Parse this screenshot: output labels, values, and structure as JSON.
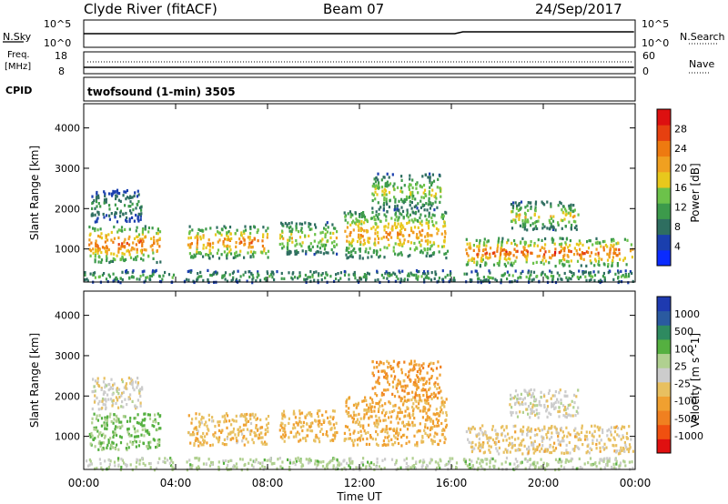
{
  "header": {
    "title": "Clyde River (fitACF)",
    "beam": "Beam 07",
    "date": "24/Sep/2017"
  },
  "top_panel": {
    "nsky_label": "N.Sky",
    "nsearch_label": "N.Search",
    "freq_label_1": "Freq.",
    "freq_label_2": "[MHz]",
    "nave_label": "Nave",
    "cpid_label": "CPID",
    "mode_text": "twofsound (1-min) 3505",
    "nsky_ticks": [
      "10^5",
      "10^0"
    ],
    "nsearch_ticks": [
      "10^5",
      "10^0"
    ],
    "freq_ticks": [
      "18",
      "8"
    ],
    "nave_ticks": [
      "60",
      "0"
    ]
  },
  "colors": {
    "power": [
      "#0a2bff",
      "#1a3fae",
      "#2e6e60",
      "#3c9a4b",
      "#6cc24a",
      "#e8c81c",
      "#f0a020",
      "#ee7a10",
      "#e64010",
      "#dd1010"
    ],
    "velocity": [
      "#e01010",
      "#f05010",
      "#f08020",
      "#f0a030",
      "#e8c060",
      "#cccccc",
      "#b0d090",
      "#55b040",
      "#2e8a60",
      "#2a5aa0",
      "#1e3ab0"
    ],
    "frame": "#000000"
  },
  "chart_data": [
    {
      "type": "heatmap",
      "title": "",
      "xlabel": "Time UT",
      "ylabel": "Slant Range [km]",
      "xlim": [
        "00:00",
        "24:00"
      ],
      "ylim": [
        180,
        4600
      ],
      "x_tick_labels": [
        "00:00",
        "04:00",
        "08:00",
        "12:00",
        "16:00",
        "20:00",
        "00:00"
      ],
      "y_tick_labels": [
        "1000",
        "2000",
        "3000",
        "4000"
      ],
      "colorbar": {
        "label": "Power [dB]",
        "tick_labels": [
          "4",
          "8",
          "12",
          "16",
          "20",
          "24",
          "28"
        ],
        "range": [
          0,
          30
        ]
      },
      "data_gaps_hours": [
        [
          3.9,
          4.3
        ],
        [
          16.2,
          16.5
        ]
      ],
      "scatter_regions": [
        {
          "t_start": 0.2,
          "t_end": 3.3,
          "range_start": 700,
          "range_end": 1600,
          "peak_db": 28
        },
        {
          "t_start": 0.3,
          "t_end": 2.5,
          "range_start": 1700,
          "range_end": 2500,
          "peak_db": 12
        },
        {
          "t_start": 4.5,
          "t_end": 8.0,
          "range_start": 800,
          "range_end": 1600,
          "peak_db": 26
        },
        {
          "t_start": 8.5,
          "t_end": 11.0,
          "range_start": 900,
          "range_end": 1700,
          "peak_db": 20
        },
        {
          "t_start": 11.3,
          "t_end": 15.8,
          "range_start": 800,
          "range_end": 2000,
          "peak_db": 24
        },
        {
          "t_start": 12.5,
          "t_end": 15.5,
          "range_start": 2000,
          "range_end": 2900,
          "peak_db": 18
        },
        {
          "t_start": 16.6,
          "t_end": 23.9,
          "range_start": 600,
          "range_end": 1300,
          "peak_db": 28
        },
        {
          "t_start": 18.5,
          "t_end": 21.5,
          "range_start": 1500,
          "range_end": 2200,
          "peak_db": 20
        },
        {
          "t_start": 0.0,
          "t_end": 23.9,
          "range_start": 200,
          "range_end": 500,
          "peak_db": 14
        }
      ]
    },
    {
      "type": "heatmap",
      "title": "",
      "xlabel": "Time UT",
      "ylabel": "Slant Range [km]",
      "xlim": [
        "00:00",
        "24:00"
      ],
      "ylim": [
        180,
        4600
      ],
      "x_tick_labels": [
        "00:00",
        "04:00",
        "08:00",
        "12:00",
        "16:00",
        "20:00",
        "00:00"
      ],
      "y_tick_labels": [
        "1000",
        "2000",
        "3000",
        "4000"
      ],
      "colorbar": {
        "label": "Velocity [m s^-1]",
        "tick_labels": [
          "1000",
          "500",
          "100",
          "25",
          "-25",
          "-100",
          "-500",
          "-1000"
        ],
        "range": [
          -1000,
          1000
        ]
      },
      "data_gaps_hours": [
        [
          3.9,
          4.3
        ],
        [
          16.2,
          16.5
        ]
      ],
      "scatter_regions": [
        {
          "t_start": 0.2,
          "t_end": 3.3,
          "range_start": 700,
          "range_end": 1600,
          "velocity": 300
        },
        {
          "t_start": 0.3,
          "t_end": 2.5,
          "range_start": 1700,
          "range_end": 2500,
          "velocity": -20
        },
        {
          "t_start": 4.5,
          "t_end": 8.0,
          "range_start": 800,
          "range_end": 1600,
          "velocity": -200
        },
        {
          "t_start": 8.5,
          "t_end": 11.0,
          "range_start": 900,
          "range_end": 1700,
          "velocity": -250
        },
        {
          "t_start": 11.3,
          "t_end": 15.8,
          "range_start": 800,
          "range_end": 2000,
          "velocity": -300
        },
        {
          "t_start": 12.5,
          "t_end": 15.5,
          "range_start": 2000,
          "range_end": 2900,
          "velocity": -400
        },
        {
          "t_start": 16.6,
          "t_end": 23.9,
          "range_start": 600,
          "range_end": 1300,
          "velocity": -150
        },
        {
          "t_start": 18.5,
          "t_end": 21.5,
          "range_start": 1500,
          "range_end": 2200,
          "velocity": 0
        },
        {
          "t_start": 0.0,
          "t_end": 23.9,
          "range_start": 200,
          "range_end": 500,
          "velocity": 150
        }
      ]
    }
  ]
}
